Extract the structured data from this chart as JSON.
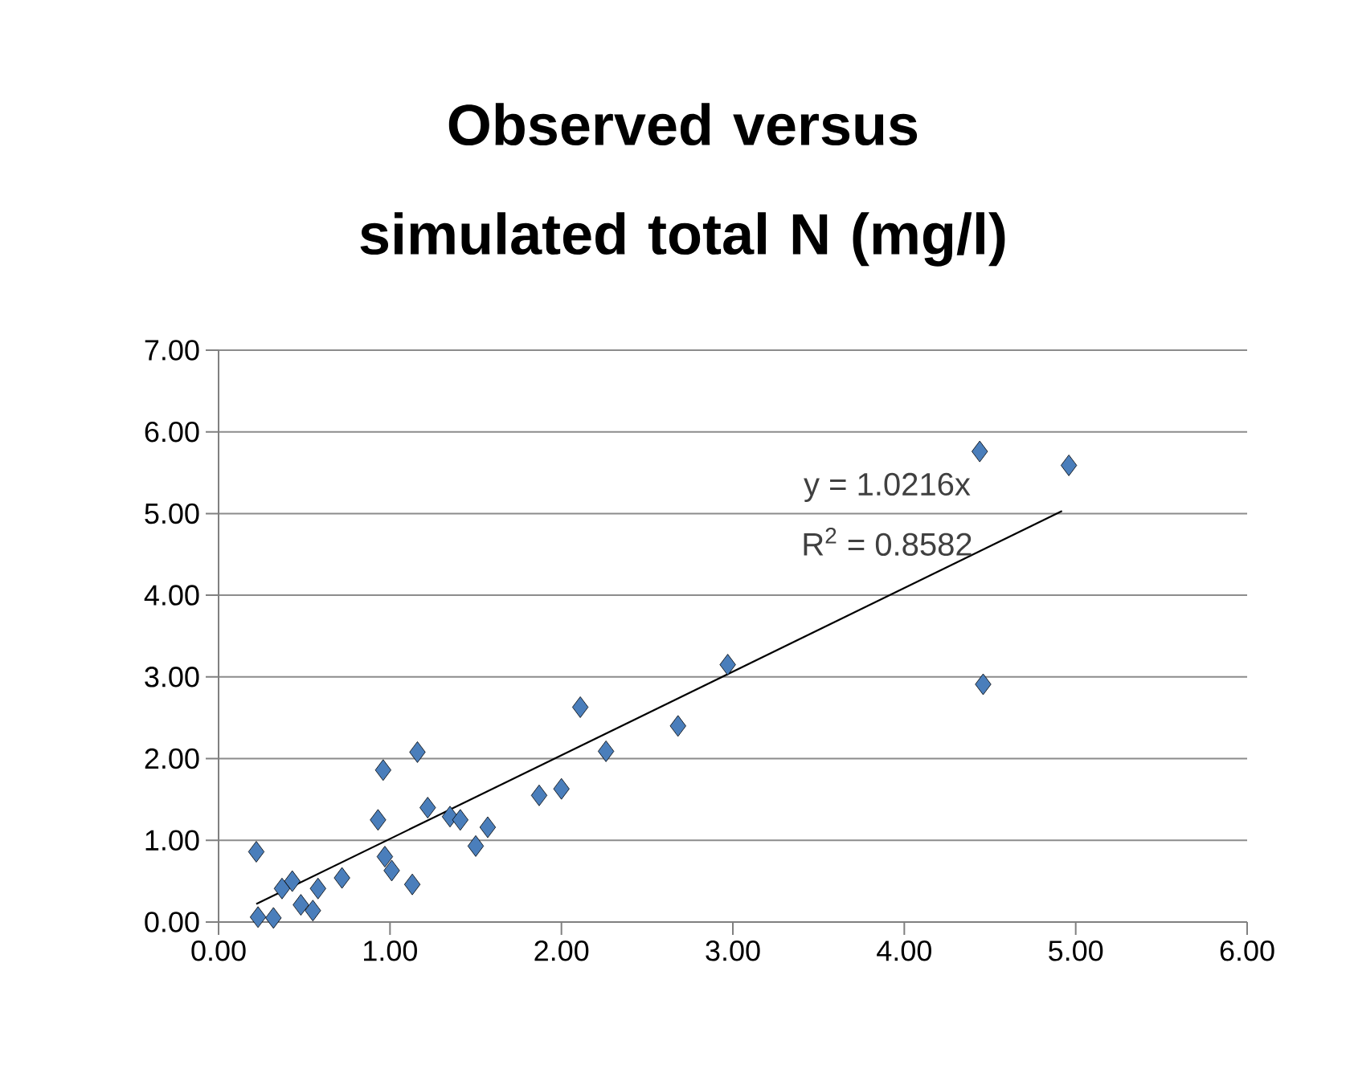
{
  "chart_data": {
    "type": "scatter",
    "title": "Observed versus simulated total N (mg/l)",
    "xlim": [
      0,
      6
    ],
    "ylim": [
      0,
      7
    ],
    "xticks": [
      {
        "value": 0,
        "label": "0.00"
      },
      {
        "value": 1,
        "label": "1.00"
      },
      {
        "value": 2,
        "label": "2.00"
      },
      {
        "value": 3,
        "label": "3.00"
      },
      {
        "value": 4,
        "label": "4.00"
      },
      {
        "value": 5,
        "label": "5.00"
      },
      {
        "value": 6,
        "label": "6.00"
      }
    ],
    "yticks": [
      {
        "value": 0,
        "label": "0.00"
      },
      {
        "value": 1,
        "label": "1.00"
      },
      {
        "value": 2,
        "label": "2.00"
      },
      {
        "value": 3,
        "label": "3.00"
      },
      {
        "value": 4,
        "label": "4.00"
      },
      {
        "value": 5,
        "label": "5.00"
      },
      {
        "value": 6,
        "label": "6.00"
      },
      {
        "value": 7,
        "label": "7.00"
      }
    ],
    "grid": "y",
    "series": [
      {
        "color": "#4a7ebb",
        "marker": "diamond",
        "x": [
          0.22,
          0.23,
          0.32,
          0.43,
          0.37,
          0.55,
          0.58,
          0.72,
          0.48,
          0.96,
          1.16,
          0.93,
          0.97,
          1.01,
          1.13,
          1.22,
          1.35,
          1.41,
          1.5,
          1.57,
          1.87,
          2.0,
          2.11,
          2.26,
          2.68,
          2.97,
          4.46,
          4.44,
          4.96
        ],
        "values": [
          0.86,
          0.06,
          0.05,
          0.5,
          0.41,
          0.14,
          0.41,
          0.54,
          0.21,
          1.86,
          2.08,
          1.25,
          0.8,
          0.63,
          0.46,
          1.4,
          1.29,
          1.25,
          0.93,
          1.16,
          1.55,
          1.63,
          2.63,
          2.09,
          2.4,
          3.15,
          2.91,
          5.76,
          5.59
        ]
      },
      {
        "type": "line",
        "color": "#000000",
        "marker": "none",
        "line_style": "solid",
        "x": [
          0.22,
          4.92
        ],
        "values": [
          0.22,
          5.03
        ]
      }
    ],
    "annotations": [
      "y = 1.0216x",
      "R$^{2}$ = 0.8582"
    ]
  }
}
